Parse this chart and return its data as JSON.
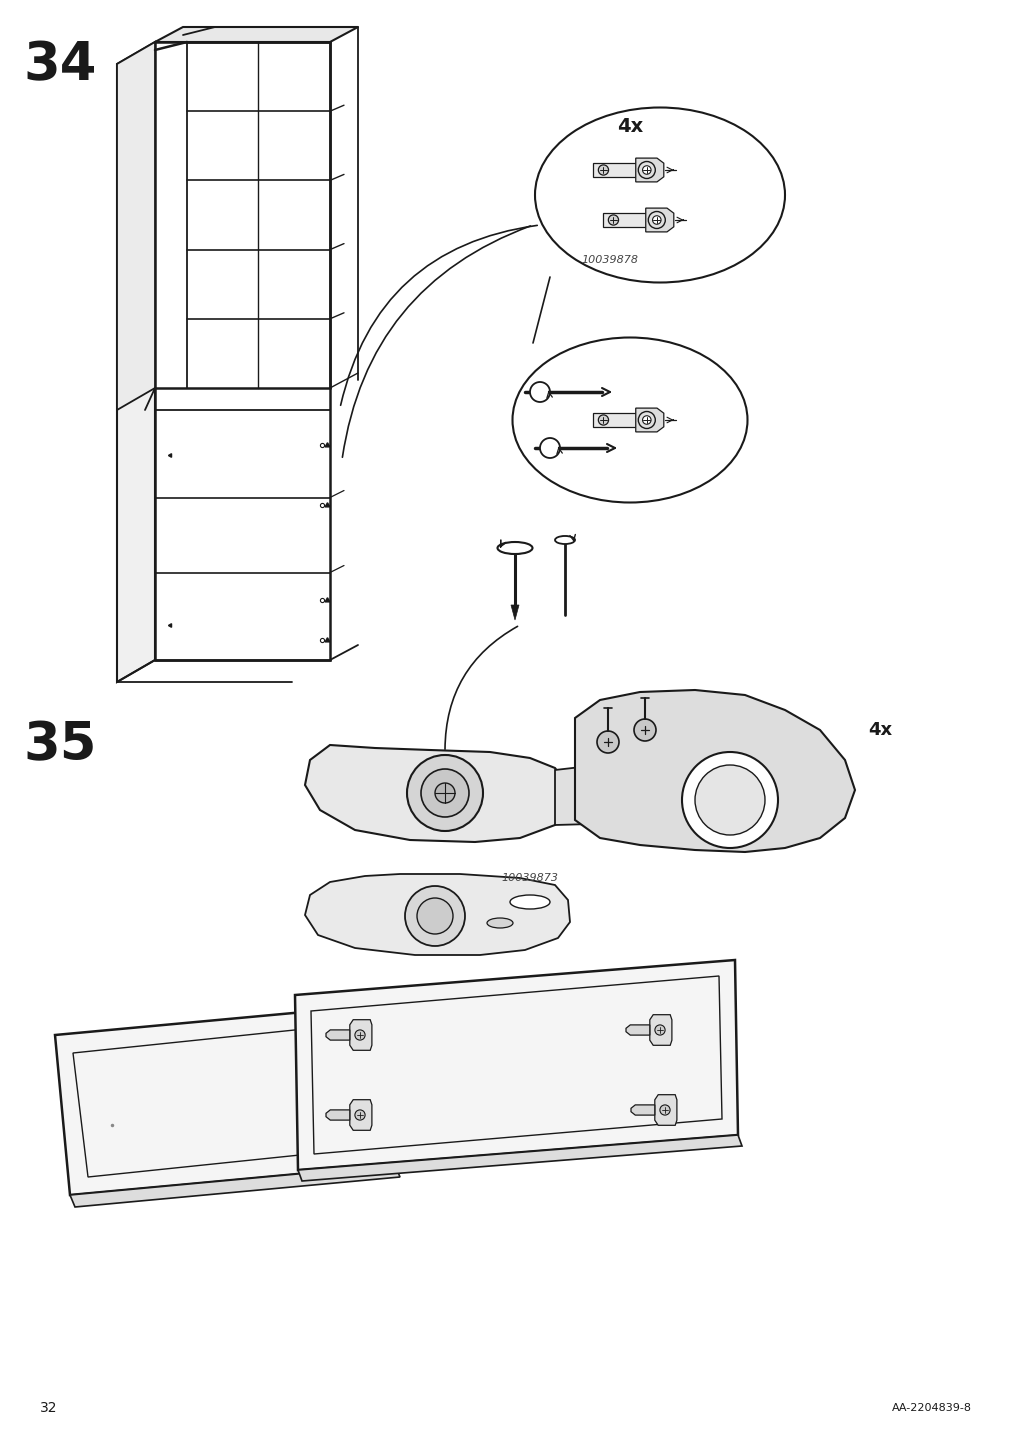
{
  "page_number": "32",
  "doc_id": "AA-2204839-8",
  "background_color": "#ffffff",
  "step34_label": "34",
  "step35_label": "35",
  "step_fontsize": 38,
  "part_number_1": "10039878",
  "part_number_2": "10039873",
  "qty_label": "4x",
  "line_color": "#1a1a1a",
  "footer_fontsize": 10,
  "docid_fontsize": 8
}
